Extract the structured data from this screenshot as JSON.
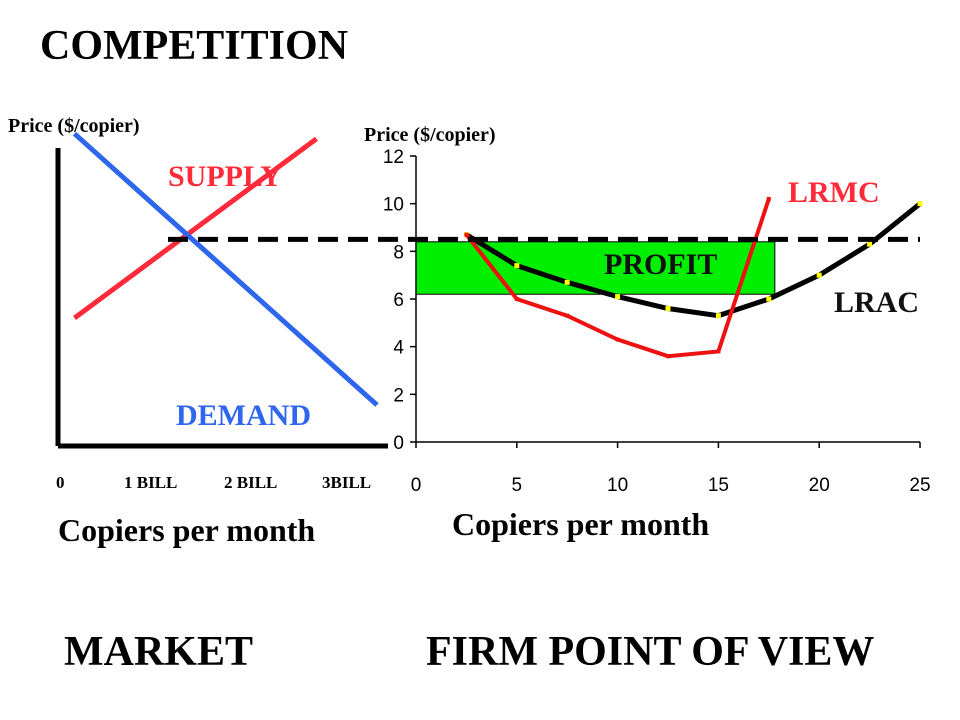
{
  "title": "COMPETITION",
  "captions": {
    "market": "MARKET",
    "firm": "FIRM POINT OF VIEW"
  },
  "colors": {
    "supply": "#ff2a3a",
    "demand": "#2f66ee",
    "lrmc": "#ee1111",
    "lrac": "#000000",
    "profit": "#00ee00",
    "marker": "#ffff00"
  },
  "chart_data": [
    {
      "type": "line",
      "name": "market",
      "ylabel": "Price ($/copier)",
      "xlabel": "Copiers per month",
      "x_ticks": [
        "0",
        "1 BILL",
        "2 BILL",
        "3BILL"
      ],
      "series": [
        {
          "name": "SUPPLY",
          "points": [
            [
              0.15,
              5.0
            ],
            [
              2.35,
              12.0
            ]
          ]
        },
        {
          "name": "DEMAND",
          "points": [
            [
              0.15,
              12.2
            ],
            [
              2.9,
              1.6
            ]
          ]
        }
      ],
      "equilibrium": {
        "x": 1.0,
        "y": 8.5
      },
      "xlim": [
        0,
        3.0
      ],
      "ylim": [
        0,
        12.5
      ]
    },
    {
      "type": "line",
      "name": "firm",
      "ylabel": "Price ($/copier)",
      "xlabel": "Copiers per month",
      "xlim": [
        0,
        25
      ],
      "ylim": [
        0,
        12
      ],
      "x_ticks": [
        0,
        5,
        10,
        15,
        20,
        25
      ],
      "y_ticks": [
        0,
        2,
        4,
        6,
        8,
        10,
        12
      ],
      "series": [
        {
          "name": "LRMC",
          "x": [
            2.5,
            5,
            7.5,
            10,
            12.5,
            15,
            17.5
          ],
          "y": [
            8.7,
            6.0,
            5.3,
            4.3,
            3.6,
            3.8,
            10.2
          ]
        },
        {
          "name": "LRAC",
          "x": [
            2.5,
            5,
            7.5,
            10,
            12.5,
            15,
            17.5,
            20,
            22.5,
            25
          ],
          "y": [
            8.7,
            7.4,
            6.7,
            6.1,
            5.6,
            5.3,
            6.0,
            7.0,
            8.3,
            10.0
          ]
        }
      ],
      "price_line": 8.5,
      "profit_box": {
        "label": "PROFIT",
        "x": [
          0,
          17.8
        ],
        "y": [
          6.2,
          8.4
        ]
      }
    }
  ]
}
